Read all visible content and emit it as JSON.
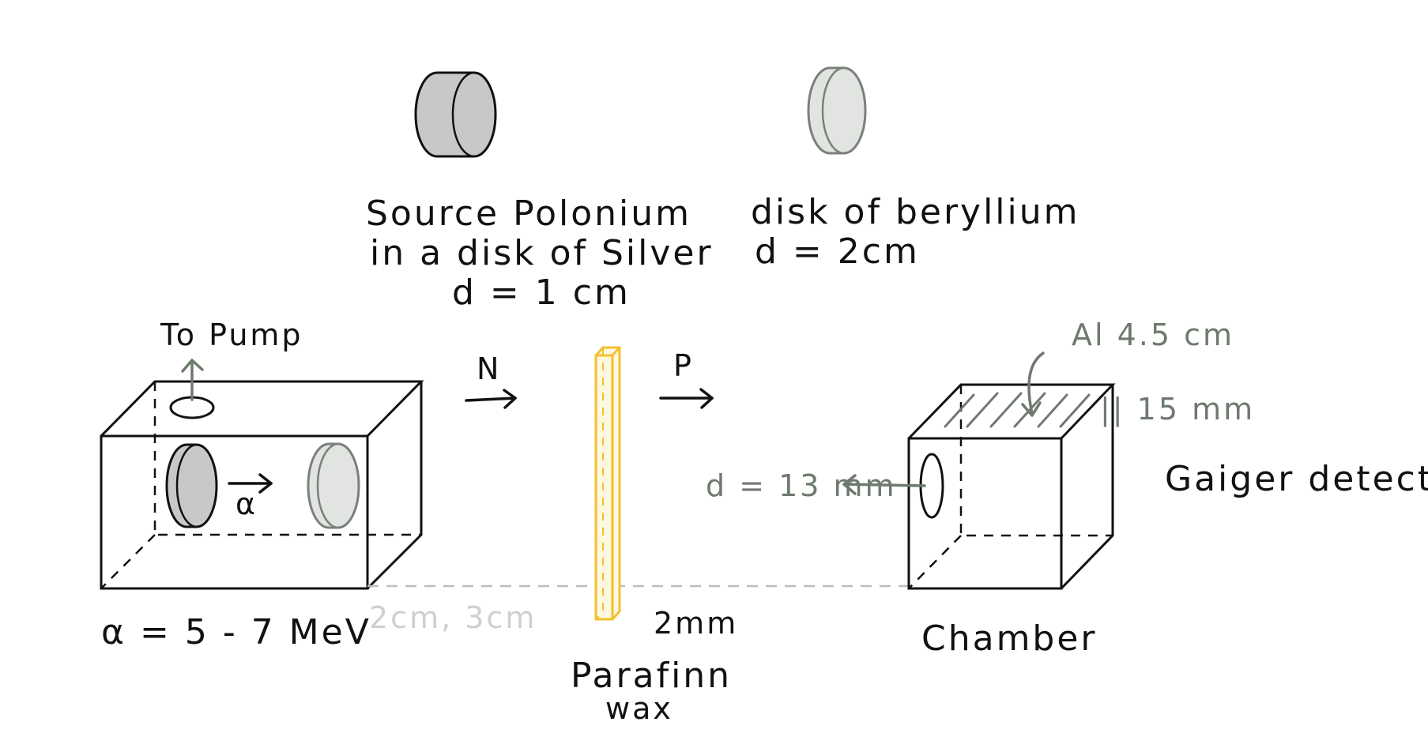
{
  "labels": {
    "source_line1": "Source Polonium",
    "source_line2": "in a disk of Silver",
    "source_line3": "d = 1 cm",
    "beryllium_line1": "disk of beryllium",
    "beryllium_line2": "d = 2cm",
    "to_pump": "To Pump",
    "alpha": "α",
    "alpha_energy": "α = 5 - 7 MeV",
    "distance": "2cm, 3cm",
    "neutron": "N",
    "proton": "P",
    "paraffin_line1": "Parafinn",
    "paraffin_line2": "wax",
    "paraffin_thickness": "2mm",
    "al_window": "Al 4.5 cm",
    "window_height": "|| 15 mm",
    "window_diameter": "d = 13 mm",
    "detector": "Gaiger detector",
    "chamber": "Chamber"
  },
  "colors": {
    "ink": "#111111",
    "annotation": "#6e7a6e",
    "polonium_disk": "#c8c8c8",
    "beryllium_disk": "#e2e4e2",
    "paraffin": "#f2c12e",
    "faint": "#cfcfcf"
  }
}
